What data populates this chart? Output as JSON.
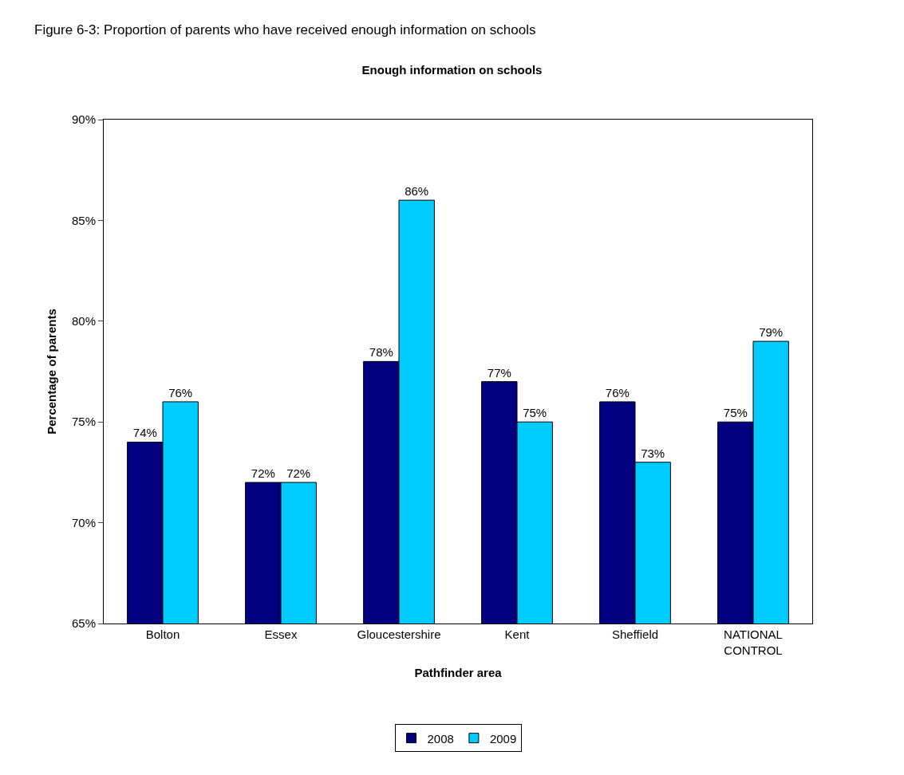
{
  "chart_data": {
    "type": "bar",
    "title": "Enough information on schools",
    "xlabel": "Pathfinder area",
    "ylabel": "Percentage of parents",
    "annotations": [
      "Figure 6-3: Proportion of parents who have received enough information on schools"
    ],
    "categories": [
      "Bolton",
      "Essex",
      "Gloucestershire",
      "Kent",
      "Sheffield",
      "NATIONAL CONTROL"
    ],
    "series": [
      {
        "name": "2008",
        "color": "#000080",
        "values": [
          74,
          72,
          78,
          77,
          76,
          75
        ],
        "value_labels": [
          "74%",
          "72%",
          "78%",
          "77%",
          "76%",
          "75%"
        ]
      },
      {
        "name": "2009",
        "color": "#00ccff",
        "values": [
          76,
          72,
          86,
          75,
          73,
          79
        ],
        "value_labels": [
          "76%",
          "72%",
          "86%",
          "75%",
          "73%",
          "79%"
        ]
      }
    ],
    "ylim": [
      65,
      90
    ],
    "yticks": [
      {
        "value": 65,
        "label": "65%"
      },
      {
        "value": 70,
        "label": "70%"
      },
      {
        "value": 75,
        "label": "75%"
      },
      {
        "value": 80,
        "label": "80%"
      },
      {
        "value": 85,
        "label": "85%"
      },
      {
        "value": 90,
        "label": "90%"
      }
    ],
    "legend": "bottom"
  }
}
